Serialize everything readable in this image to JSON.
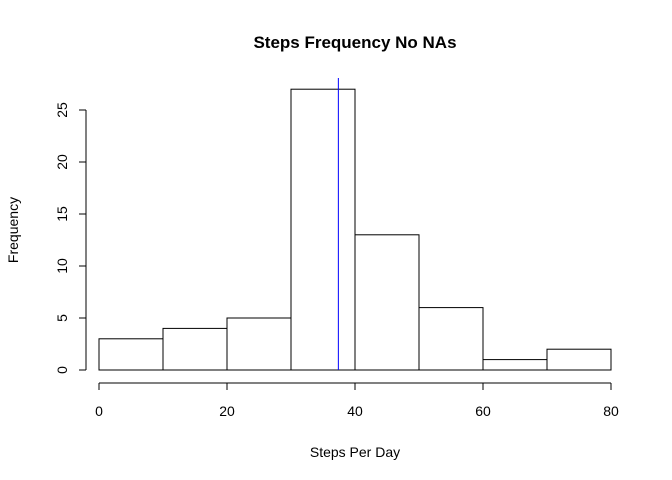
{
  "chart_data": {
    "type": "bar",
    "title": "Steps Frequency No NAs",
    "xlabel": "Steps Per Day",
    "ylabel": "Frequency",
    "bins": [
      {
        "x0": 0,
        "x1": 10,
        "value": 3
      },
      {
        "x0": 10,
        "x1": 20,
        "value": 4
      },
      {
        "x0": 20,
        "x1": 30,
        "value": 5
      },
      {
        "x0": 30,
        "x1": 40,
        "value": 27
      },
      {
        "x0": 40,
        "x1": 50,
        "value": 13
      },
      {
        "x0": 50,
        "x1": 60,
        "value": 6
      },
      {
        "x0": 60,
        "x1": 70,
        "value": 1
      },
      {
        "x0": 70,
        "x1": 80,
        "value": 2
      }
    ],
    "xlim": [
      0,
      80
    ],
    "ylim": [
      0,
      28
    ],
    "xticks": [
      0,
      20,
      40,
      60,
      80
    ],
    "yticks": [
      0,
      5,
      10,
      15,
      20,
      25
    ],
    "reference_line": {
      "x": 37.4,
      "color": "#0000ff"
    },
    "bar_fill": "#ffffff",
    "bar_stroke": "#000000",
    "grid": false,
    "legend": "none"
  }
}
